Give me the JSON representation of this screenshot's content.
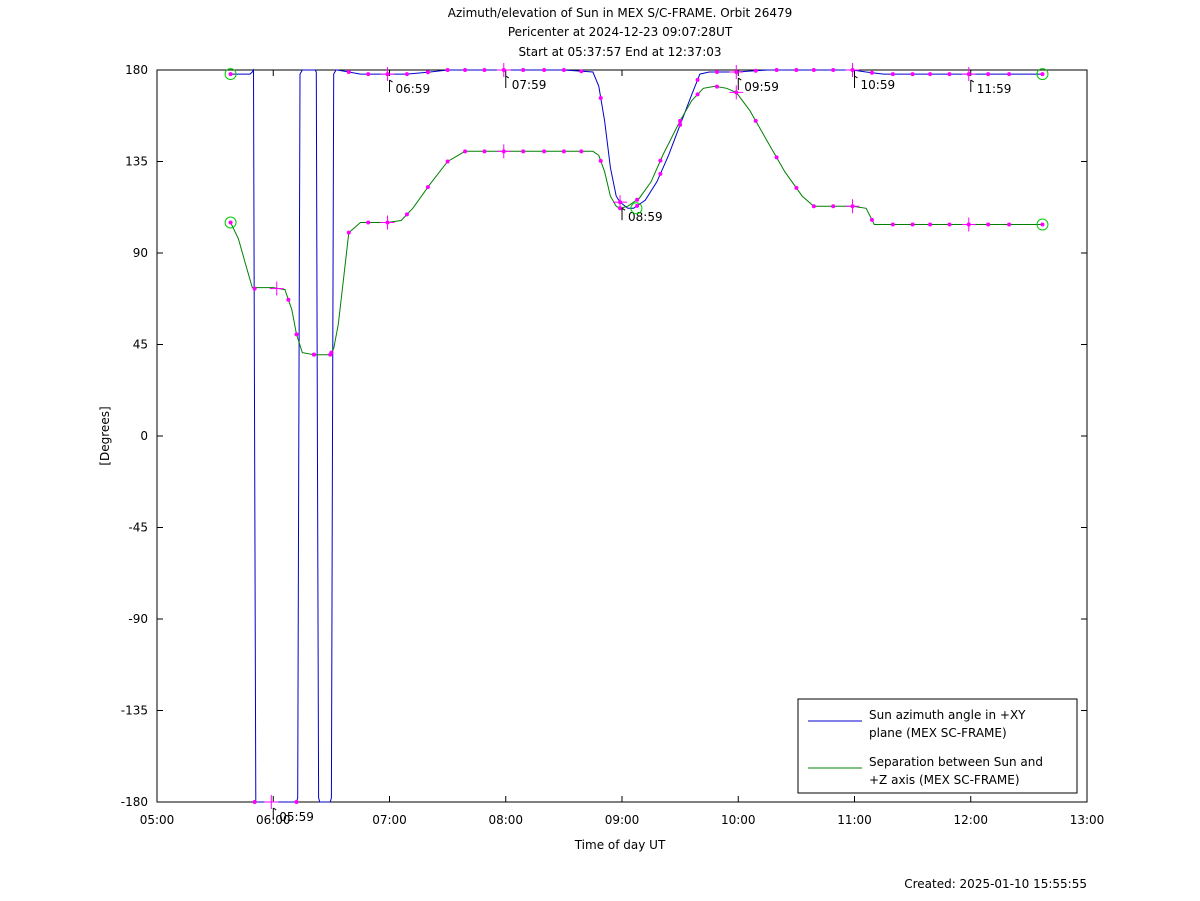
{
  "chart_data": {
    "type": "line",
    "title_lines": [
      "Azimuth/elevation of Sun in MEX S/C-FRAME.  Orbit 26479",
      "Pericenter at 2024-12-23 09:07:28UT",
      "Start at 05:37:57 End at 12:37:03"
    ],
    "xlabel": "Time of day UT",
    "ylabel": "[Degrees]",
    "xlim_hours": [
      5,
      13
    ],
    "ylim": [
      -180,
      180
    ],
    "x_ticks": [
      "05:00",
      "06:00",
      "07:00",
      "08:00",
      "09:00",
      "10:00",
      "11:00",
      "12:00",
      "13:00"
    ],
    "y_ticks": [
      180,
      135,
      90,
      45,
      0,
      -45,
      -90,
      -135,
      -180
    ],
    "legend": [
      {
        "line1": "Sun azimuth angle in +XY",
        "line2": "plane (MEX SC-FRAME)",
        "color": "#0000cc"
      },
      {
        "line1": "Separation between Sun and",
        "line2": "+Z axis (MEX SC-FRAME)",
        "color": "#008000"
      }
    ],
    "legend_position": "bottom-right",
    "series": [
      {
        "name": "Sun azimuth angle in +XY plane (MEX SC-FRAME)",
        "color": "#0000cc",
        "x": [
          5.633,
          5.8,
          5.82,
          5.83,
          5.84,
          5.85,
          5.86,
          6.2,
          6.21,
          6.22,
          6.23,
          6.24,
          6.25,
          6.36,
          6.37,
          6.38,
          6.39,
          6.4,
          6.41,
          6.49,
          6.5,
          6.51,
          6.52,
          6.53,
          6.54,
          6.55,
          6.65,
          6.75,
          6.983,
          7.15,
          7.35,
          7.5,
          7.75,
          7.983,
          8.25,
          8.5,
          8.75,
          8.8,
          8.85,
          8.9,
          8.95,
          8.983,
          9.05,
          9.1,
          9.2,
          9.3,
          9.4,
          9.5,
          9.6,
          9.67,
          9.75,
          9.983,
          10.25,
          10.5,
          10.75,
          10.983,
          11.1,
          11.25,
          11.5,
          11.75,
          11.983,
          12.25,
          12.617
        ],
        "y": [
          178,
          178,
          179,
          180,
          0,
          -180,
          -180,
          -180,
          -178,
          0,
          178,
          179,
          180,
          180,
          179,
          0,
          -178,
          -180,
          -180,
          -180,
          -178,
          0,
          178,
          179,
          180,
          180,
          179,
          178,
          178,
          178,
          179,
          180,
          180,
          180,
          180,
          180,
          179,
          172,
          155,
          132,
          118,
          115,
          112,
          112,
          116,
          125,
          138,
          153,
          168,
          178,
          179,
          179,
          180,
          180,
          180,
          180,
          179,
          178,
          178,
          178,
          178,
          178,
          178
        ]
      },
      {
        "name": "Separation between Sun and +Z axis (MEX SC-FRAME)",
        "color": "#008000",
        "x": [
          5.633,
          5.7,
          5.76,
          5.82,
          5.85,
          6.0,
          6.1,
          6.16,
          6.2,
          6.25,
          6.35,
          6.49,
          6.52,
          6.56,
          6.6,
          6.65,
          6.75,
          6.983,
          7.1,
          7.2,
          7.35,
          7.5,
          7.65,
          7.8,
          7.983,
          8.2,
          8.5,
          8.75,
          8.8,
          8.85,
          8.9,
          8.95,
          8.983,
          9.05,
          9.15,
          9.25,
          9.35,
          9.5,
          9.6,
          9.7,
          9.8,
          9.9,
          9.983,
          10.1,
          10.25,
          10.4,
          10.55,
          10.65,
          10.8,
          10.983,
          11.1,
          11.17,
          11.3,
          11.5,
          11.75,
          11.983,
          12.25,
          12.617
        ],
        "y": [
          105,
          97,
          85,
          73,
          73,
          73,
          72,
          62,
          50,
          41,
          40,
          40,
          43,
          55,
          75,
          100,
          105,
          105,
          106,
          112,
          124,
          135,
          140,
          140,
          140,
          140,
          140,
          140,
          138,
          130,
          118,
          113,
          112,
          113,
          117,
          125,
          138,
          155,
          165,
          171,
          172,
          171,
          169,
          160,
          145,
          130,
          118,
          113,
          113,
          113,
          112,
          104,
          104,
          104,
          104,
          104,
          104,
          104
        ]
      }
    ],
    "markers": {
      "line_points_x": [
        5.633,
        6.13,
        6.2,
        6.35,
        6.5,
        6.65,
        6.817,
        6.983,
        7.15,
        7.33,
        7.5,
        7.65,
        7.817,
        7.983,
        8.15,
        8.33,
        8.5,
        8.65,
        8.817,
        8.983,
        9.13,
        9.33,
        9.5,
        9.65,
        9.817,
        9.983,
        10.15,
        10.33,
        10.5,
        10.65,
        10.817,
        10.983,
        11.15,
        11.33,
        11.5,
        11.65,
        11.817,
        11.983,
        12.15,
        12.33,
        12.617
      ],
      "hour_cross_labels": [
        {
          "time": 5.983,
          "label": "05:59",
          "on": "azimuth_low"
        },
        {
          "time": 6.983,
          "label": "06:59",
          "on": "azimuth"
        },
        {
          "time": 7.983,
          "label": "07:59",
          "on": "azimuth"
        },
        {
          "time": 8.983,
          "label": "08:59",
          "on": "azimuth"
        },
        {
          "time": 9.983,
          "label": "09:59",
          "on": "azimuth"
        },
        {
          "time": 10.983,
          "label": "10:59",
          "on": "azimuth"
        },
        {
          "time": 11.983,
          "label": "11:59",
          "on": "azimuth"
        }
      ],
      "circle_points": [
        {
          "time": 5.633,
          "azimuth": 178,
          "separation": 105
        },
        {
          "time": 12.617,
          "azimuth": 178,
          "separation": 104
        },
        {
          "time": 9.124,
          "separation": 112
        }
      ],
      "color": "#ff00ff",
      "circle_color": "#00cc00"
    }
  },
  "footer": {
    "created": "Created: 2025-01-10 15:55:55"
  }
}
